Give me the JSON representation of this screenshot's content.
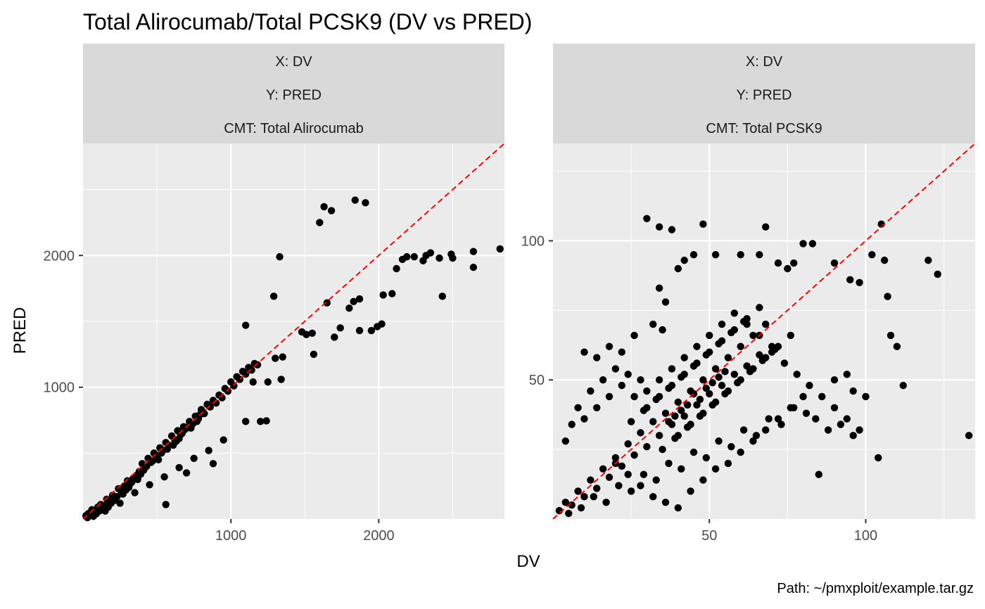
{
  "title": "Total Alirocumab/Total PCSK9 (DV vs PRED)",
  "xlabel": "DV",
  "ylabel": "PRED",
  "footer": "Path: ~/pmxploit/example.tar.gz",
  "colors": {
    "points": "#000000",
    "identity_line": "#ff0000",
    "panel_bg": "#ebebeb",
    "strip_bg": "#d9d9d9",
    "grid": "#ffffff"
  },
  "chart_data": [
    {
      "type": "scatter",
      "strip": [
        "X: DV",
        "Y: PRED",
        "CMT: Total Alirocumab"
      ],
      "xlim": [
        0,
        2850
      ],
      "ylim": [
        0,
        2850
      ],
      "xticks": [
        1000,
        2000
      ],
      "xtick_labels": [
        "1000",
        "2000"
      ],
      "yticks": [
        1000,
        2000
      ],
      "ytick_labels": [
        "1000",
        "2000"
      ],
      "grid": true,
      "identity_line": true,
      "points": [
        [
          20,
          25
        ],
        [
          35,
          40
        ],
        [
          50,
          30
        ],
        [
          60,
          70
        ],
        [
          80,
          60
        ],
        [
          100,
          90
        ],
        [
          120,
          110
        ],
        [
          140,
          100
        ],
        [
          160,
          150
        ],
        [
          180,
          130
        ],
        [
          200,
          180
        ],
        [
          220,
          160
        ],
        [
          240,
          230
        ],
        [
          260,
          210
        ],
        [
          280,
          250
        ],
        [
          300,
          290
        ],
        [
          320,
          270
        ],
        [
          340,
          310
        ],
        [
          360,
          330
        ],
        [
          380,
          360
        ],
        [
          400,
          420
        ],
        [
          420,
          390
        ],
        [
          440,
          460
        ],
        [
          460,
          430
        ],
        [
          480,
          500
        ],
        [
          500,
          470
        ],
        [
          520,
          540
        ],
        [
          540,
          520
        ],
        [
          560,
          580
        ],
        [
          580,
          560
        ],
        [
          600,
          630
        ],
        [
          620,
          600
        ],
        [
          640,
          670
        ],
        [
          660,
          640
        ],
        [
          680,
          700
        ],
        [
          700,
          690
        ],
        [
          720,
          740
        ],
        [
          740,
          720
        ],
        [
          760,
          780
        ],
        [
          780,
          760
        ],
        [
          800,
          830
        ],
        [
          820,
          800
        ],
        [
          840,
          870
        ],
        [
          860,
          850
        ],
        [
          880,
          900
        ],
        [
          900,
          880
        ],
        [
          920,
          940
        ],
        [
          940,
          920
        ],
        [
          960,
          990
        ],
        [
          980,
          970
        ],
        [
          1000,
          1040
        ],
        [
          1020,
          1010
        ],
        [
          1040,
          1080
        ],
        [
          1060,
          1060
        ],
        [
          1080,
          1120
        ],
        [
          1100,
          1100
        ],
        [
          1120,
          1150
        ],
        [
          1140,
          1130
        ],
        [
          1160,
          1180
        ],
        [
          1180,
          1170
        ],
        [
          150,
          60
        ],
        [
          250,
          120
        ],
        [
          350,
          200
        ],
        [
          450,
          260
        ],
        [
          550,
          320
        ],
        [
          650,
          390
        ],
        [
          750,
          460
        ],
        [
          850,
          520
        ],
        [
          950,
          600
        ],
        [
          560,
          110
        ],
        [
          700,
          350
        ],
        [
          880,
          420
        ],
        [
          1100,
          740
        ],
        [
          1200,
          740
        ],
        [
          1240,
          745
        ],
        [
          1150,
          1040
        ],
        [
          1250,
          1040
        ],
        [
          1340,
          1060
        ],
        [
          1300,
          1220
        ],
        [
          1350,
          1230
        ],
        [
          1290,
          1690
        ],
        [
          1330,
          1990
        ],
        [
          1100,
          1470
        ],
        [
          1480,
          1420
        ],
        [
          1510,
          1400
        ],
        [
          1550,
          1410
        ],
        [
          1560,
          1250
        ],
        [
          1600,
          2250
        ],
        [
          1630,
          2370
        ],
        [
          1680,
          2340
        ],
        [
          1650,
          1640
        ],
        [
          1700,
          1380
        ],
        [
          1740,
          1450
        ],
        [
          1800,
          1600
        ],
        [
          1830,
          1650
        ],
        [
          1870,
          1670
        ],
        [
          1870,
          1430
        ],
        [
          1840,
          2420
        ],
        [
          1910,
          2400
        ],
        [
          1950,
          1430
        ],
        [
          1990,
          1460
        ],
        [
          2020,
          1480
        ],
        [
          2030,
          1700
        ],
        [
          2090,
          1710
        ],
        [
          2120,
          1900
        ],
        [
          2160,
          1970
        ],
        [
          2190,
          1990
        ],
        [
          2240,
          1990
        ],
        [
          2300,
          1960
        ],
        [
          2320,
          2000
        ],
        [
          2350,
          2020
        ],
        [
          2410,
          1980
        ],
        [
          2430,
          1690
        ],
        [
          2490,
          2010
        ],
        [
          2500,
          1980
        ],
        [
          2640,
          2030
        ],
        [
          2640,
          1910
        ],
        [
          2820,
          2050
        ],
        [
          30,
          10
        ],
        [
          70,
          20
        ],
        [
          90,
          40
        ],
        [
          110,
          60
        ],
        [
          130,
          80
        ],
        [
          170,
          90
        ],
        [
          190,
          120
        ],
        [
          210,
          140
        ],
        [
          230,
          170
        ],
        [
          270,
          190
        ],
        [
          290,
          220
        ],
        [
          310,
          240
        ],
        [
          330,
          280
        ],
        [
          370,
          300
        ],
        [
          390,
          340
        ],
        [
          410,
          370
        ],
        [
          430,
          400
        ],
        [
          470,
          440
        ],
        [
          490,
          480
        ],
        [
          510,
          450
        ],
        [
          530,
          500
        ],
        [
          570,
          530
        ],
        [
          610,
          560
        ],
        [
          630,
          590
        ],
        [
          650,
          610
        ],
        [
          670,
          650
        ],
        [
          690,
          680
        ],
        [
          710,
          700
        ],
        [
          730,
          690
        ],
        [
          770,
          740
        ],
        [
          790,
          790
        ],
        [
          810,
          810
        ]
      ]
    },
    {
      "type": "scatter",
      "strip": [
        "X: DV",
        "Y: PRED",
        "CMT: Total PCSK9"
      ],
      "xlim": [
        0,
        135
      ],
      "ylim": [
        0,
        135
      ],
      "xticks": [
        50,
        100
      ],
      "xtick_labels": [
        "50",
        "100"
      ],
      "yticks": [
        50,
        100
      ],
      "ytick_labels": [
        "50",
        "100"
      ],
      "grid": true,
      "identity_line": true,
      "points": [
        [
          2,
          3
        ],
        [
          4,
          6
        ],
        [
          6,
          5
        ],
        [
          8,
          10
        ],
        [
          10,
          8
        ],
        [
          12,
          14
        ],
        [
          14,
          11
        ],
        [
          16,
          18
        ],
        [
          18,
          15
        ],
        [
          20,
          22
        ],
        [
          22,
          19
        ],
        [
          24,
          27
        ],
        [
          26,
          23
        ],
        [
          28,
          31
        ],
        [
          30,
          26
        ],
        [
          32,
          35
        ],
        [
          34,
          30
        ],
        [
          36,
          38
        ],
        [
          38,
          34
        ],
        [
          40,
          42
        ],
        [
          42,
          37
        ],
        [
          44,
          46
        ],
        [
          46,
          41
        ],
        [
          48,
          50
        ],
        [
          50,
          45
        ],
        [
          52,
          54
        ],
        [
          54,
          48
        ],
        [
          56,
          58
        ],
        [
          58,
          52
        ],
        [
          60,
          62
        ],
        [
          62,
          55
        ],
        [
          64,
          66
        ],
        [
          66,
          59
        ],
        [
          68,
          70
        ],
        [
          70,
          62
        ],
        [
          30,
          108
        ],
        [
          34,
          105
        ],
        [
          38,
          104
        ],
        [
          48,
          106
        ],
        [
          68,
          105
        ],
        [
          105,
          106
        ],
        [
          120,
          93
        ],
        [
          123,
          88
        ],
        [
          133,
          30
        ],
        [
          104,
          22
        ],
        [
          85,
          16
        ],
        [
          112,
          48
        ],
        [
          108,
          66
        ],
        [
          110,
          62
        ],
        [
          107,
          80
        ],
        [
          102,
          95
        ],
        [
          106,
          93
        ],
        [
          98,
          85
        ],
        [
          95,
          86
        ],
        [
          90,
          92
        ],
        [
          80,
          99
        ],
        [
          83,
          99
        ],
        [
          77,
          92
        ],
        [
          75,
          90
        ],
        [
          72,
          92
        ],
        [
          66,
          95
        ],
        [
          60,
          95
        ],
        [
          52,
          95
        ],
        [
          45,
          95
        ],
        [
          42,
          93
        ],
        [
          40,
          90
        ],
        [
          36,
          78
        ],
        [
          34,
          83
        ],
        [
          32,
          70
        ],
        [
          35,
          68
        ],
        [
          10,
          60
        ],
        [
          14,
          58
        ],
        [
          18,
          62
        ],
        [
          22,
          60
        ],
        [
          26,
          66
        ],
        [
          20,
          54
        ],
        [
          24,
          52
        ],
        [
          28,
          50
        ],
        [
          16,
          50
        ],
        [
          12,
          46
        ],
        [
          8,
          40
        ],
        [
          6,
          34
        ],
        [
          4,
          28
        ],
        [
          10,
          36
        ],
        [
          14,
          40
        ],
        [
          18,
          44
        ],
        [
          22,
          48
        ],
        [
          26,
          44
        ],
        [
          30,
          46
        ],
        [
          34,
          50
        ],
        [
          38,
          54
        ],
        [
          42,
          58
        ],
        [
          46,
          62
        ],
        [
          50,
          66
        ],
        [
          54,
          70
        ],
        [
          58,
          74
        ],
        [
          62,
          70
        ],
        [
          66,
          66
        ],
        [
          70,
          60
        ],
        [
          74,
          56
        ],
        [
          78,
          52
        ],
        [
          82,
          48
        ],
        [
          86,
          44
        ],
        [
          90,
          40
        ],
        [
          94,
          36
        ],
        [
          98,
          32
        ],
        [
          90,
          50
        ],
        [
          94,
          52
        ],
        [
          96,
          46
        ],
        [
          100,
          44
        ],
        [
          20,
          20
        ],
        [
          24,
          16
        ],
        [
          28,
          12
        ],
        [
          32,
          8
        ],
        [
          36,
          6
        ],
        [
          40,
          4
        ],
        [
          44,
          10
        ],
        [
          48,
          14
        ],
        [
          52,
          18
        ],
        [
          56,
          20
        ],
        [
          60,
          24
        ],
        [
          64,
          28
        ],
        [
          68,
          32
        ],
        [
          72,
          36
        ],
        [
          76,
          40
        ],
        [
          80,
          44
        ],
        [
          84,
          36
        ],
        [
          88,
          32
        ],
        [
          92,
          34
        ],
        [
          96,
          30
        ],
        [
          5,
          2
        ],
        [
          9,
          4
        ],
        [
          13,
          8
        ],
        [
          17,
          6
        ],
        [
          21,
          12
        ],
        [
          25,
          10
        ],
        [
          29,
          16
        ],
        [
          33,
          14
        ],
        [
          37,
          20
        ],
        [
          41,
          18
        ],
        [
          45,
          24
        ],
        [
          49,
          22
        ],
        [
          53,
          28
        ],
        [
          57,
          26
        ],
        [
          61,
          32
        ],
        [
          65,
          30
        ],
        [
          69,
          36
        ],
        [
          73,
          34
        ],
        [
          77,
          40
        ],
        [
          81,
          38
        ],
        [
          30,
          40
        ],
        [
          34,
          44
        ],
        [
          38,
          48
        ],
        [
          42,
          52
        ],
        [
          46,
          56
        ],
        [
          50,
          60
        ],
        [
          54,
          64
        ],
        [
          58,
          68
        ],
        [
          62,
          72
        ],
        [
          66,
          76
        ],
        [
          40,
          30
        ],
        [
          44,
          34
        ],
        [
          48,
          38
        ],
        [
          52,
          42
        ],
        [
          56,
          46
        ],
        [
          60,
          50
        ],
        [
          64,
          54
        ],
        [
          68,
          58
        ],
        [
          72,
          62
        ],
        [
          76,
          66
        ],
        [
          35,
          25
        ],
        [
          39,
          29
        ],
        [
          43,
          33
        ],
        [
          47,
          37
        ],
        [
          51,
          41
        ],
        [
          55,
          45
        ],
        [
          59,
          49
        ],
        [
          63,
          53
        ],
        [
          67,
          57
        ],
        [
          71,
          61
        ],
        [
          25,
          35
        ],
        [
          29,
          39
        ],
        [
          33,
          43
        ],
        [
          37,
          47
        ],
        [
          41,
          51
        ],
        [
          45,
          55
        ],
        [
          49,
          59
        ],
        [
          53,
          63
        ],
        [
          57,
          67
        ],
        [
          61,
          71
        ],
        [
          45,
          45
        ],
        [
          47,
          43
        ],
        [
          49,
          47
        ],
        [
          51,
          49
        ],
        [
          53,
          51
        ],
        [
          55,
          53
        ],
        [
          43,
          41
        ],
        [
          41,
          39
        ],
        [
          39,
          37
        ],
        [
          37,
          35
        ]
      ]
    }
  ]
}
